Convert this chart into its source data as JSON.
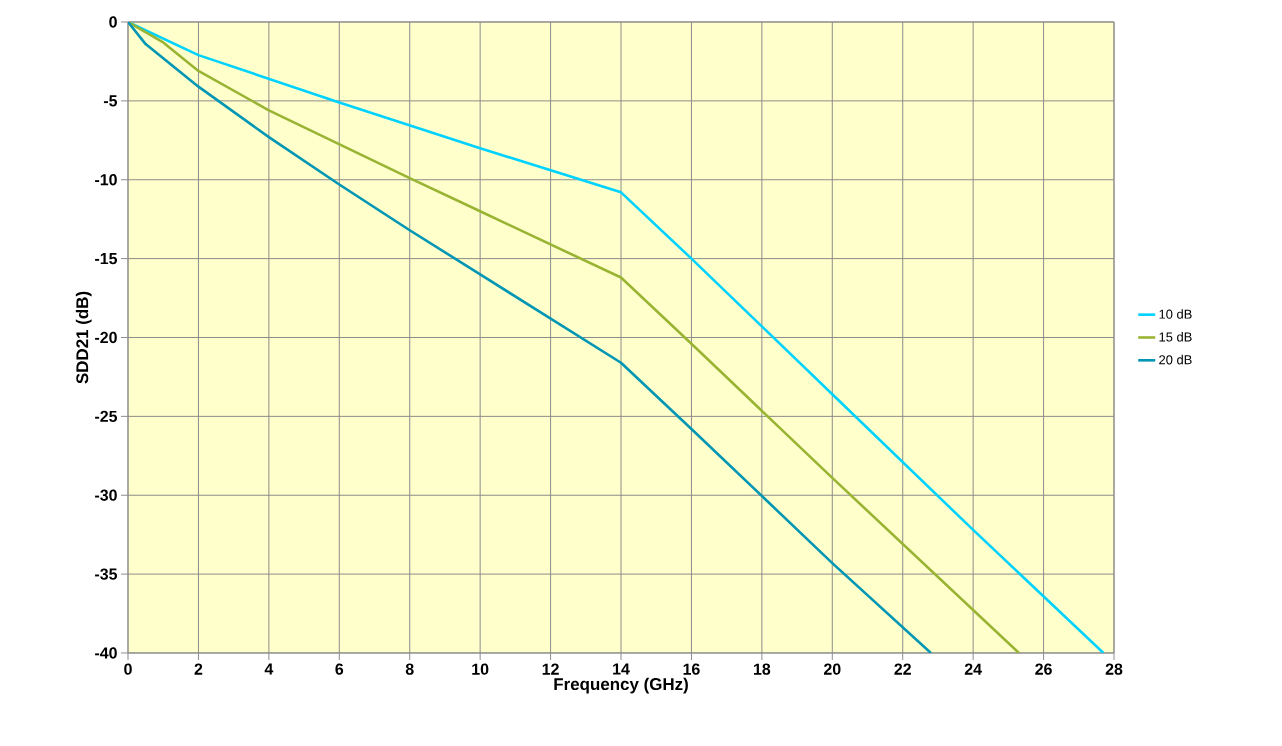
{
  "chart_data": {
    "type": "line",
    "xlabel": "Frequency (GHz)",
    "ylabel": "SDD21 (dB)",
    "xlim": [
      0,
      28
    ],
    "xticks": [
      0,
      2,
      4,
      6,
      8,
      10,
      12,
      14,
      16,
      18,
      20,
      22,
      24,
      26,
      28
    ],
    "ylim": [
      -40,
      0
    ],
    "yticks": [
      -40,
      -35,
      -30,
      -25,
      -20,
      -15,
      -10,
      -5,
      0
    ],
    "grid": true,
    "legend": "right",
    "marker": "none",
    "line_style": "solid",
    "series": [
      {
        "name": "10 dB",
        "color": "#00d2ff",
        "x": [
          0,
          2,
          6,
          10,
          14,
          16,
          20,
          24,
          27.7
        ],
        "values": [
          0,
          -2.1,
          -5.1,
          -8,
          -10.8,
          -15,
          -23.6,
          -32.2,
          -40
        ]
      },
      {
        "name": "15 dB",
        "color": "#99b433",
        "x": [
          0,
          1,
          2,
          4,
          8,
          10,
          14,
          16,
          20,
          25.3
        ],
        "values": [
          0,
          -1.3,
          -3.1,
          -5.6,
          -9.9,
          -12,
          -16.2,
          -20.4,
          -28.9,
          -40
        ]
      },
      {
        "name": "20 dB",
        "color": "#0096b4",
        "x": [
          0,
          0.5,
          1,
          2,
          4,
          6,
          8,
          10,
          14,
          16,
          20,
          22.8
        ],
        "values": [
          0,
          -1.4,
          -2.3,
          -4.1,
          -7.3,
          -10.3,
          -13.2,
          -16,
          -21.6,
          -25.8,
          -34.3,
          -40
        ]
      }
    ]
  }
}
